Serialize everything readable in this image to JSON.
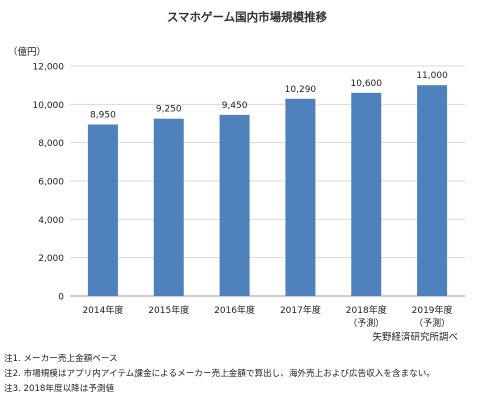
{
  "chart_data": {
    "type": "bar",
    "title": "スマホゲーム国内市場規模推移",
    "yunit": "（億円）",
    "categories": [
      [
        "2014年度"
      ],
      [
        "2015年度"
      ],
      [
        "2016年度"
      ],
      [
        "2017年度"
      ],
      [
        "2018年度",
        "（予測）"
      ],
      [
        "2019年度",
        "（予測）"
      ]
    ],
    "values": [
      8950,
      9250,
      9450,
      10290,
      10600,
      11000
    ],
    "value_labels": [
      "8,950",
      "9,250",
      "9,450",
      "10,290",
      "10,600",
      "11,000"
    ],
    "ylim": [
      0,
      12000
    ],
    "yticks": [
      0,
      2000,
      4000,
      6000,
      8000,
      10000,
      12000
    ],
    "ytick_labels": [
      "0",
      "2,000",
      "4,000",
      "6,000",
      "8,000",
      "10,000",
      "12,000"
    ],
    "grid": true,
    "bar_color": "#4f81bd",
    "source": "矢野経済研究所調べ"
  },
  "notes": [
    "注1. メーカー売上金額ベース",
    "注2. 市場規模はアプリ内アイテム課金によるメーカー売上金額で算出し、海外売上および広告収入を含まない。",
    "注3. 2018年度以降は予測値"
  ]
}
